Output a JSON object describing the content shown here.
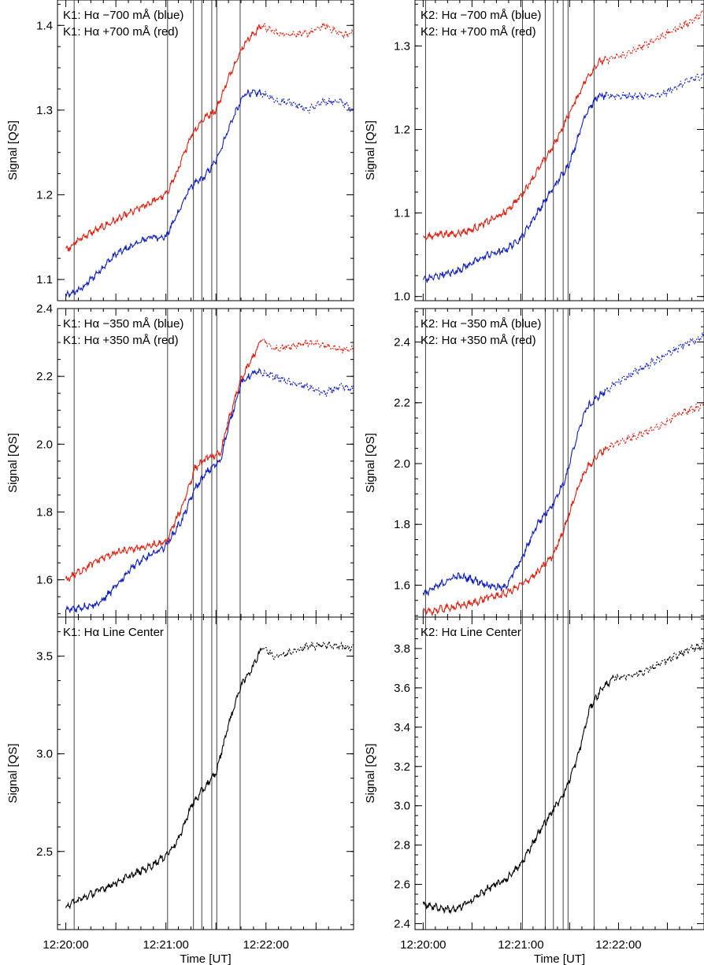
{
  "chart_data": [
    {
      "type": "line",
      "panel": "K1 wing 700",
      "labels": [
        "K1:  Hα −700 mÅ (blue)",
        "K1:  Hα +700 mÅ (red)"
      ],
      "ylabel": "Signal [QS]",
      "xlabel": "",
      "xlim": [
        -10,
        345
      ],
      "ylim": [
        1.075,
        1.43
      ],
      "yticks": [
        1.1,
        1.2,
        1.3,
        1.4
      ],
      "ytick_labels": [
        "1.1",
        "1.2",
        "1.3",
        "1.4"
      ],
      "vlines": [
        10,
        122,
        153,
        163,
        175,
        181,
        209
      ],
      "series": [
        {
          "color": "#1020c0",
          "solid_until": 235,
          "x": [
            0,
            20,
            40,
            60,
            80,
            100,
            120,
            135,
            150,
            165,
            180,
            200,
            215,
            235,
            255,
            270,
            290,
            310,
            330,
            345
          ],
          "y": [
            1.08,
            1.09,
            1.11,
            1.13,
            1.14,
            1.15,
            1.15,
            1.18,
            1.21,
            1.22,
            1.24,
            1.29,
            1.32,
            1.32,
            1.31,
            1.31,
            1.3,
            1.31,
            1.31,
            1.3
          ]
        },
        {
          "color": "#e02010",
          "solid_until": 235,
          "x": [
            0,
            20,
            40,
            60,
            80,
            100,
            120,
            135,
            150,
            165,
            180,
            200,
            215,
            235,
            255,
            270,
            290,
            310,
            330,
            345
          ],
          "y": [
            1.135,
            1.15,
            1.16,
            1.17,
            1.18,
            1.19,
            1.2,
            1.23,
            1.27,
            1.29,
            1.3,
            1.35,
            1.38,
            1.4,
            1.39,
            1.39,
            1.39,
            1.4,
            1.39,
            1.39
          ]
        }
      ]
    },
    {
      "type": "line",
      "panel": "K2 wing 700",
      "labels": [
        "K2:  Hα −700 mÅ (blue)",
        "K2:  Hα +700 mÅ (red)"
      ],
      "ylabel": "Signal [QS]",
      "xlabel": "",
      "xlim": [
        -10,
        345
      ],
      "ylim": [
        0.995,
        1.355
      ],
      "yticks": [
        1.0,
        1.1,
        1.2,
        1.3
      ],
      "ytick_labels": [
        "1.0",
        "1.1",
        "1.2",
        "1.3"
      ],
      "vlines": [
        3,
        122,
        150,
        160,
        172,
        178,
        210
      ],
      "series": [
        {
          "color": "#1020c0",
          "solid_until": 225,
          "x": [
            0,
            20,
            40,
            60,
            80,
            100,
            120,
            140,
            160,
            180,
            200,
            215,
            230,
            250,
            270,
            290,
            310,
            330,
            345
          ],
          "y": [
            1.02,
            1.025,
            1.03,
            1.04,
            1.05,
            1.055,
            1.07,
            1.1,
            1.13,
            1.16,
            1.22,
            1.24,
            1.24,
            1.24,
            1.24,
            1.24,
            1.25,
            1.26,
            1.265
          ]
        },
        {
          "color": "#e02010",
          "solid_until": 225,
          "x": [
            0,
            20,
            40,
            60,
            80,
            100,
            120,
            140,
            160,
            180,
            200,
            215,
            230,
            250,
            270,
            290,
            310,
            330,
            345
          ],
          "y": [
            1.07,
            1.075,
            1.075,
            1.08,
            1.09,
            1.1,
            1.12,
            1.15,
            1.18,
            1.22,
            1.26,
            1.28,
            1.285,
            1.29,
            1.3,
            1.31,
            1.32,
            1.33,
            1.34
          ]
        }
      ]
    },
    {
      "type": "line",
      "panel": "K1 wing 350",
      "labels": [
        "K1:  Hα −350 mÅ (blue)",
        "K1:  Hα +350 mÅ (red)"
      ],
      "ylabel": "Signal [QS]",
      "xlabel": "",
      "xlim": [
        -10,
        345
      ],
      "ylim": [
        1.49,
        2.4
      ],
      "yticks": [
        1.6,
        1.8,
        2.0,
        2.2,
        2.4
      ],
      "ytick_labels": [
        "1.6",
        "1.8",
        "2.0",
        "2.2",
        "2.4"
      ],
      "vlines": [
        10,
        122,
        153,
        163,
        175,
        181,
        209
      ],
      "series": [
        {
          "color": "#1020c0",
          "solid_until": 235,
          "x": [
            0,
            20,
            40,
            60,
            80,
            100,
            120,
            140,
            155,
            170,
            185,
            195,
            210,
            225,
            235,
            250,
            270,
            290,
            310,
            330,
            345
          ],
          "y": [
            1.51,
            1.52,
            1.53,
            1.58,
            1.64,
            1.67,
            1.7,
            1.78,
            1.87,
            1.92,
            1.95,
            2.05,
            2.18,
            2.21,
            2.21,
            2.2,
            2.18,
            2.17,
            2.15,
            2.17,
            2.16
          ]
        },
        {
          "color": "#e02010",
          "solid_until": 235,
          "x": [
            0,
            20,
            40,
            60,
            80,
            100,
            120,
            140,
            155,
            170,
            185,
            195,
            210,
            225,
            235,
            250,
            270,
            290,
            310,
            330,
            345
          ],
          "y": [
            1.6,
            1.63,
            1.66,
            1.68,
            1.69,
            1.7,
            1.71,
            1.82,
            1.93,
            1.96,
            1.97,
            2.07,
            2.19,
            2.26,
            2.31,
            2.28,
            2.29,
            2.3,
            2.29,
            2.28,
            2.28
          ]
        }
      ]
    },
    {
      "type": "line",
      "panel": "K2 wing 350",
      "labels": [
        "K2:  Hα −350 mÅ (blue)",
        "K2:  Hα +350 mÅ (red)"
      ],
      "ylabel": "Signal [QS]",
      "xlabel": "",
      "xlim": [
        -10,
        345
      ],
      "ylim": [
        1.495,
        2.51
      ],
      "yticks": [
        1.6,
        1.8,
        2.0,
        2.2,
        2.4
      ],
      "ytick_labels": [
        "1.6",
        "1.8",
        "2.0",
        "2.2",
        "2.4"
      ],
      "vlines": [
        3,
        122,
        150,
        160,
        172,
        178,
        210
      ],
      "series": [
        {
          "color": "#1020c0",
          "solid_until": 225,
          "x": [
            0,
            20,
            40,
            60,
            80,
            100,
            120,
            140,
            160,
            175,
            190,
            200,
            215,
            225,
            240,
            260,
            280,
            300,
            320,
            345
          ],
          "y": [
            1.57,
            1.6,
            1.63,
            1.62,
            1.6,
            1.59,
            1.68,
            1.8,
            1.87,
            1.95,
            2.1,
            2.18,
            2.22,
            2.24,
            2.27,
            2.3,
            2.33,
            2.36,
            2.39,
            2.42
          ]
        },
        {
          "color": "#e02010",
          "solid_until": 225,
          "x": [
            0,
            20,
            40,
            60,
            80,
            100,
            120,
            140,
            160,
            175,
            190,
            200,
            215,
            225,
            240,
            260,
            280,
            300,
            320,
            345
          ],
          "y": [
            1.51,
            1.52,
            1.53,
            1.54,
            1.56,
            1.57,
            1.6,
            1.64,
            1.7,
            1.8,
            1.92,
            1.98,
            2.03,
            2.05,
            2.07,
            2.09,
            2.11,
            2.14,
            2.17,
            2.19
          ]
        }
      ]
    },
    {
      "type": "line",
      "panel": "K1 line center",
      "labels": [
        "K1:  Hα Line Center"
      ],
      "ylabel": "Signal [QS]",
      "xlabel": "Time [UT]",
      "xlim": [
        -10,
        345
      ],
      "ylim": [
        2.1,
        3.7
      ],
      "yticks": [
        2.5,
        3.0,
        3.5
      ],
      "ytick_labels": [
        "2.5",
        "3.0",
        "3.5"
      ],
      "vlines": [
        10,
        122,
        153,
        163,
        175,
        181,
        209
      ],
      "xticks": [
        0,
        120,
        240
      ],
      "xtick_labels": [
        "12:20:00",
        "12:21:00",
        "12:22:00"
      ],
      "series": [
        {
          "color": "#000000",
          "solid_until": 235,
          "x": [
            0,
            20,
            40,
            60,
            80,
            100,
            120,
            135,
            150,
            165,
            180,
            195,
            210,
            225,
            235,
            250,
            270,
            290,
            310,
            330,
            345
          ],
          "y": [
            2.22,
            2.26,
            2.3,
            2.34,
            2.38,
            2.42,
            2.48,
            2.56,
            2.73,
            2.82,
            2.9,
            3.15,
            3.35,
            3.45,
            3.55,
            3.5,
            3.52,
            3.55,
            3.56,
            3.55,
            3.54
          ]
        }
      ]
    },
    {
      "type": "line",
      "panel": "K2 line center",
      "labels": [
        "K2:  Hα Line Center"
      ],
      "ylabel": "Signal [QS]",
      "xlabel": "Time [UT]",
      "xlim": [
        -10,
        345
      ],
      "ylim": [
        2.37,
        3.96
      ],
      "yticks": [
        2.4,
        2.6,
        2.8,
        3.0,
        3.2,
        3.4,
        3.6,
        3.8
      ],
      "ytick_labels": [
        "2.4",
        "2.6",
        "2.8",
        "3.0",
        "3.2",
        "3.4",
        "3.6",
        "3.8"
      ],
      "vlines": [
        3,
        122,
        150,
        160,
        172,
        178,
        210
      ],
      "xticks": [
        0,
        120,
        240
      ],
      "xtick_labels": [
        "12:20:00",
        "12:21:00",
        "12:22:00"
      ],
      "series": [
        {
          "color": "#000000",
          "solid_until": 235,
          "x": [
            0,
            20,
            40,
            60,
            80,
            100,
            120,
            140,
            160,
            175,
            190,
            205,
            220,
            235,
            250,
            270,
            290,
            310,
            330,
            345
          ],
          "y": [
            2.5,
            2.48,
            2.47,
            2.52,
            2.58,
            2.62,
            2.7,
            2.85,
            2.98,
            3.08,
            3.25,
            3.5,
            3.6,
            3.65,
            3.66,
            3.68,
            3.72,
            3.76,
            3.8,
            3.82
          ]
        }
      ]
    }
  ]
}
